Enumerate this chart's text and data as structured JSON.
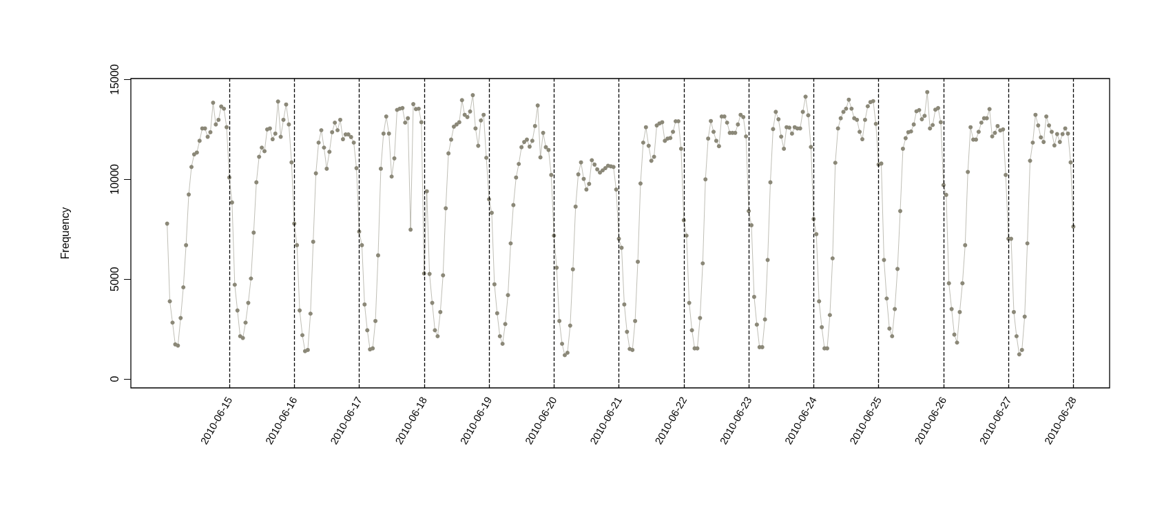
{
  "chart_data": {
    "type": "line",
    "ylabel": "Frequency",
    "xlim": [
      "2010-06-13T11:36",
      "2010-06-28T13:24"
    ],
    "xticks": [
      "2010-06-15",
      "2010-06-16",
      "2010-06-17",
      "2010-06-18",
      "2010-06-19",
      "2010-06-20",
      "2010-06-21",
      "2010-06-22",
      "2010-06-23",
      "2010-06-24",
      "2010-06-25",
      "2010-06-26",
      "2010-06-27",
      "2010-06-28"
    ],
    "ylim": [
      -450,
      15050
    ],
    "yticks": [
      0,
      5000,
      10000,
      15000
    ],
    "grid": false,
    "marker": "circle",
    "line_style": "solid",
    "ref_lines": [
      {
        "axis": "x",
        "value": "2010-06-15",
        "color": "#000000",
        "line_style": "dashed"
      },
      {
        "axis": "x",
        "value": "2010-06-16",
        "color": "#000000",
        "line_style": "dashed"
      },
      {
        "axis": "x",
        "value": "2010-06-17",
        "color": "#000000",
        "line_style": "dashed"
      },
      {
        "axis": "x",
        "value": "2010-06-18",
        "color": "#000000",
        "line_style": "dashed"
      },
      {
        "axis": "x",
        "value": "2010-06-19",
        "color": "#000000",
        "line_style": "dashed"
      },
      {
        "axis": "x",
        "value": "2010-06-20",
        "color": "#000000",
        "line_style": "dashed"
      },
      {
        "axis": "x",
        "value": "2010-06-21",
        "color": "#000000",
        "line_style": "dashed"
      },
      {
        "axis": "x",
        "value": "2010-06-22",
        "color": "#000000",
        "line_style": "dashed"
      },
      {
        "axis": "x",
        "value": "2010-06-23",
        "color": "#000000",
        "line_style": "dashed"
      },
      {
        "axis": "x",
        "value": "2010-06-24",
        "color": "#000000",
        "line_style": "dashed"
      },
      {
        "axis": "x",
        "value": "2010-06-25",
        "color": "#000000",
        "line_style": "dashed"
      },
      {
        "axis": "x",
        "value": "2010-06-26",
        "color": "#000000",
        "line_style": "dashed"
      },
      {
        "axis": "x",
        "value": "2010-06-27",
        "color": "#000000",
        "line_style": "dashed"
      },
      {
        "axis": "x",
        "value": "2010-06-28",
        "color": "#000000",
        "line_style": "dashed"
      }
    ],
    "x": [
      "2010-06-14T01:00",
      "2010-06-14T02:00",
      "2010-06-14T03:00",
      "2010-06-14T04:00",
      "2010-06-14T05:00",
      "2010-06-14T06:00",
      "2010-06-14T07:00",
      "2010-06-14T08:00",
      "2010-06-14T09:00",
      "2010-06-14T10:00",
      "2010-06-14T11:00",
      "2010-06-14T12:00",
      "2010-06-14T13:00",
      "2010-06-14T14:00",
      "2010-06-14T15:00",
      "2010-06-14T16:00",
      "2010-06-14T17:00",
      "2010-06-14T18:00",
      "2010-06-14T19:00",
      "2010-06-14T20:00",
      "2010-06-14T21:00",
      "2010-06-14T22:00",
      "2010-06-14T23:00",
      "2010-06-15T00:00",
      "2010-06-15T01:00",
      "2010-06-15T02:00",
      "2010-06-15T03:00",
      "2010-06-15T04:00",
      "2010-06-15T05:00",
      "2010-06-15T06:00",
      "2010-06-15T07:00",
      "2010-06-15T08:00",
      "2010-06-15T09:00",
      "2010-06-15T10:00",
      "2010-06-15T11:00",
      "2010-06-15T12:00",
      "2010-06-15T13:00",
      "2010-06-15T14:00",
      "2010-06-15T15:00",
      "2010-06-15T16:00",
      "2010-06-15T17:00",
      "2010-06-15T18:00",
      "2010-06-15T19:00",
      "2010-06-15T20:00",
      "2010-06-15T21:00",
      "2010-06-15T22:00",
      "2010-06-15T23:00",
      "2010-06-16T00:00",
      "2010-06-16T01:00",
      "2010-06-16T02:00",
      "2010-06-16T03:00",
      "2010-06-16T04:00",
      "2010-06-16T05:00",
      "2010-06-16T06:00",
      "2010-06-16T07:00",
      "2010-06-16T08:00",
      "2010-06-16T09:00",
      "2010-06-16T10:00",
      "2010-06-16T11:00",
      "2010-06-16T12:00",
      "2010-06-16T13:00",
      "2010-06-16T14:00",
      "2010-06-16T15:00",
      "2010-06-16T16:00",
      "2010-06-16T17:00",
      "2010-06-16T18:00",
      "2010-06-16T19:00",
      "2010-06-16T20:00",
      "2010-06-16T21:00",
      "2010-06-16T22:00",
      "2010-06-16T23:00",
      "2010-06-17T00:00",
      "2010-06-17T01:00",
      "2010-06-17T02:00",
      "2010-06-17T03:00",
      "2010-06-17T04:00",
      "2010-06-17T05:00",
      "2010-06-17T06:00",
      "2010-06-17T07:00",
      "2010-06-17T08:00",
      "2010-06-17T09:00",
      "2010-06-17T10:00",
      "2010-06-17T11:00",
      "2010-06-17T12:00",
      "2010-06-17T13:00",
      "2010-06-17T14:00",
      "2010-06-17T15:00",
      "2010-06-17T16:00",
      "2010-06-17T17:00",
      "2010-06-17T18:00",
      "2010-06-17T19:00",
      "2010-06-17T20:00",
      "2010-06-17T21:00",
      "2010-06-17T22:00",
      "2010-06-17T23:00",
      "2010-06-18T00:00",
      "2010-06-18T01:00",
      "2010-06-18T02:00",
      "2010-06-18T03:00",
      "2010-06-18T04:00",
      "2010-06-18T05:00",
      "2010-06-18T06:00",
      "2010-06-18T07:00",
      "2010-06-18T08:00",
      "2010-06-18T09:00",
      "2010-06-18T10:00",
      "2010-06-18T11:00",
      "2010-06-18T12:00",
      "2010-06-18T13:00",
      "2010-06-18T14:00",
      "2010-06-18T15:00",
      "2010-06-18T16:00",
      "2010-06-18T17:00",
      "2010-06-18T18:00",
      "2010-06-18T19:00",
      "2010-06-18T20:00",
      "2010-06-18T21:00",
      "2010-06-18T22:00",
      "2010-06-18T23:00",
      "2010-06-19T00:00",
      "2010-06-19T01:00",
      "2010-06-19T02:00",
      "2010-06-19T03:00",
      "2010-06-19T04:00",
      "2010-06-19T05:00",
      "2010-06-19T06:00",
      "2010-06-19T07:00",
      "2010-06-19T08:00",
      "2010-06-19T09:00",
      "2010-06-19T10:00",
      "2010-06-19T11:00",
      "2010-06-19T12:00",
      "2010-06-19T13:00",
      "2010-06-19T14:00",
      "2010-06-19T15:00",
      "2010-06-19T16:00",
      "2010-06-19T17:00",
      "2010-06-19T18:00",
      "2010-06-19T19:00",
      "2010-06-19T20:00",
      "2010-06-19T21:00",
      "2010-06-19T22:00",
      "2010-06-19T23:00",
      "2010-06-20T00:00",
      "2010-06-20T01:00",
      "2010-06-20T02:00",
      "2010-06-20T03:00",
      "2010-06-20T04:00",
      "2010-06-20T05:00",
      "2010-06-20T06:00",
      "2010-06-20T07:00",
      "2010-06-20T08:00",
      "2010-06-20T09:00",
      "2010-06-20T10:00",
      "2010-06-20T11:00",
      "2010-06-20T12:00",
      "2010-06-20T13:00",
      "2010-06-20T14:00",
      "2010-06-20T15:00",
      "2010-06-20T16:00",
      "2010-06-20T17:00",
      "2010-06-20T18:00",
      "2010-06-20T19:00",
      "2010-06-20T20:00",
      "2010-06-20T21:00",
      "2010-06-20T22:00",
      "2010-06-20T23:00",
      "2010-06-21T00:00",
      "2010-06-21T01:00",
      "2010-06-21T02:00",
      "2010-06-21T03:00",
      "2010-06-21T04:00",
      "2010-06-21T05:00",
      "2010-06-21T06:00",
      "2010-06-21T07:00",
      "2010-06-21T08:00",
      "2010-06-21T09:00",
      "2010-06-21T10:00",
      "2010-06-21T11:00",
      "2010-06-21T12:00",
      "2010-06-21T13:00",
      "2010-06-21T14:00",
      "2010-06-21T15:00",
      "2010-06-21T16:00",
      "2010-06-21T17:00",
      "2010-06-21T18:00",
      "2010-06-21T19:00",
      "2010-06-21T20:00",
      "2010-06-21T21:00",
      "2010-06-21T22:00",
      "2010-06-21T23:00",
      "2010-06-22T00:00",
      "2010-06-22T01:00",
      "2010-06-22T02:00",
      "2010-06-22T03:00",
      "2010-06-22T04:00",
      "2010-06-22T05:00",
      "2010-06-22T06:00",
      "2010-06-22T07:00",
      "2010-06-22T08:00",
      "2010-06-22T09:00",
      "2010-06-22T10:00",
      "2010-06-22T11:00",
      "2010-06-22T12:00",
      "2010-06-22T13:00",
      "2010-06-22T14:00",
      "2010-06-22T15:00",
      "2010-06-22T16:00",
      "2010-06-22T17:00",
      "2010-06-22T18:00",
      "2010-06-22T19:00",
      "2010-06-22T20:00",
      "2010-06-22T21:00",
      "2010-06-22T22:00",
      "2010-06-22T23:00",
      "2010-06-23T00:00",
      "2010-06-23T01:00",
      "2010-06-23T02:00",
      "2010-06-23T03:00",
      "2010-06-23T04:00",
      "2010-06-23T05:00",
      "2010-06-23T06:00",
      "2010-06-23T07:00",
      "2010-06-23T08:00",
      "2010-06-23T09:00",
      "2010-06-23T10:00",
      "2010-06-23T11:00",
      "2010-06-23T12:00",
      "2010-06-23T13:00",
      "2010-06-23T14:00",
      "2010-06-23T15:00",
      "2010-06-23T16:00",
      "2010-06-23T17:00",
      "2010-06-23T18:00",
      "2010-06-23T19:00",
      "2010-06-23T20:00",
      "2010-06-23T21:00",
      "2010-06-23T22:00",
      "2010-06-23T23:00",
      "2010-06-24T00:00",
      "2010-06-24T01:00",
      "2010-06-24T02:00",
      "2010-06-24T03:00",
      "2010-06-24T04:00",
      "2010-06-24T05:00",
      "2010-06-24T06:00",
      "2010-06-24T07:00",
      "2010-06-24T08:00",
      "2010-06-24T09:00",
      "2010-06-24T10:00",
      "2010-06-24T11:00",
      "2010-06-24T12:00",
      "2010-06-24T13:00",
      "2010-06-24T14:00",
      "2010-06-24T15:00",
      "2010-06-24T16:00",
      "2010-06-24T17:00",
      "2010-06-24T18:00",
      "2010-06-24T19:00",
      "2010-06-24T20:00",
      "2010-06-24T21:00",
      "2010-06-24T22:00",
      "2010-06-24T23:00",
      "2010-06-25T00:00",
      "2010-06-25T01:00",
      "2010-06-25T02:00",
      "2010-06-25T03:00",
      "2010-06-25T04:00",
      "2010-06-25T05:00",
      "2010-06-25T06:00",
      "2010-06-25T07:00",
      "2010-06-25T08:00",
      "2010-06-25T09:00",
      "2010-06-25T10:00",
      "2010-06-25T11:00",
      "2010-06-25T12:00",
      "2010-06-25T13:00",
      "2010-06-25T14:00",
      "2010-06-25T15:00",
      "2010-06-25T16:00",
      "2010-06-25T17:00",
      "2010-06-25T18:00",
      "2010-06-25T19:00",
      "2010-06-25T20:00",
      "2010-06-25T21:00",
      "2010-06-25T22:00",
      "2010-06-25T23:00",
      "2010-06-26T00:00",
      "2010-06-26T01:00",
      "2010-06-26T02:00",
      "2010-06-26T03:00",
      "2010-06-26T04:00",
      "2010-06-26T05:00",
      "2010-06-26T06:00",
      "2010-06-26T07:00",
      "2010-06-26T08:00",
      "2010-06-26T09:00",
      "2010-06-26T10:00",
      "2010-06-26T11:00",
      "2010-06-26T12:00",
      "2010-06-26T13:00",
      "2010-06-26T14:00",
      "2010-06-26T15:00",
      "2010-06-26T16:00",
      "2010-06-26T17:00",
      "2010-06-26T18:00",
      "2010-06-26T19:00",
      "2010-06-26T20:00",
      "2010-06-26T21:00",
      "2010-06-26T22:00",
      "2010-06-26T23:00",
      "2010-06-27T00:00",
      "2010-06-27T01:00",
      "2010-06-27T02:00",
      "2010-06-27T03:00",
      "2010-06-27T04:00",
      "2010-06-27T05:00",
      "2010-06-27T06:00",
      "2010-06-27T07:00",
      "2010-06-27T08:00",
      "2010-06-27T09:00",
      "2010-06-27T10:00",
      "2010-06-27T11:00",
      "2010-06-27T12:00",
      "2010-06-27T13:00",
      "2010-06-27T14:00",
      "2010-06-27T15:00",
      "2010-06-27T16:00",
      "2010-06-27T17:00",
      "2010-06-27T18:00",
      "2010-06-27T19:00",
      "2010-06-27T20:00",
      "2010-06-27T21:00",
      "2010-06-27T22:00",
      "2010-06-27T23:00",
      "2010-06-28T00:00"
    ],
    "series": [
      {
        "color": "#8b8878",
        "values": [
          7780,
          3890,
          2820,
          1730,
          1670,
          3050,
          4590,
          6700,
          9240,
          10620,
          11250,
          11340,
          11930,
          12550,
          12550,
          12130,
          12360,
          13840,
          12750,
          12980,
          13650,
          13540,
          12610,
          10090,
          8840,
          4720,
          3430,
          2140,
          2050,
          2820,
          3810,
          5030,
          7330,
          9850,
          11130,
          11590,
          11410,
          12500,
          12550,
          12010,
          12290,
          13900,
          12130,
          12980,
          13750,
          12750,
          10850,
          7780,
          6700,
          3430,
          2190,
          1390,
          1450,
          3270,
          6870,
          10300,
          11840,
          12460,
          11590,
          10530,
          11380,
          12360,
          12840,
          12460,
          12980,
          12010,
          12250,
          12250,
          12120,
          11840,
          10560,
          7380,
          6700,
          3730,
          2440,
          1480,
          1530,
          2900,
          6190,
          10530,
          12290,
          13150,
          12290,
          10140,
          11050,
          13480,
          13540,
          13570,
          12840,
          13060,
          7480,
          13770,
          13520,
          13540,
          12860,
          5280,
          9400,
          5260,
          3810,
          2440,
          2140,
          3350,
          5190,
          8550,
          11300,
          11990,
          12640,
          12750,
          12860,
          13970,
          13230,
          13120,
          13400,
          14220,
          12550,
          11680,
          12950,
          13230,
          11080,
          9000,
          8320,
          4740,
          3290,
          2140,
          1760,
          2750,
          4200,
          6790,
          8710,
          10090,
          10770,
          11610,
          11870,
          11990,
          11640,
          11930,
          12670,
          13700,
          11100,
          12330,
          11610,
          11470,
          10220,
          7180,
          5570,
          2900,
          1760,
          1190,
          1310,
          2670,
          5490,
          8630,
          10250,
          10850,
          10020,
          9490,
          9770,
          10960,
          10740,
          10500,
          10340,
          10450,
          10560,
          10680,
          10650,
          10620,
          9490,
          7020,
          6570,
          3730,
          2360,
          1500,
          1450,
          2900,
          5870,
          9790,
          11840,
          12610,
          11680,
          10930,
          11130,
          12700,
          12800,
          12860,
          11930,
          12040,
          12070,
          12380,
          12910,
          12910,
          11530,
          7950,
          7180,
          3810,
          2440,
          1530,
          1530,
          3050,
          5790,
          10000,
          12040,
          12920,
          12380,
          11930,
          11660,
          13150,
          13150,
          12840,
          12330,
          12330,
          12330,
          12750,
          13230,
          13120,
          12150,
          8410,
          7700,
          4110,
          2720,
          1590,
          1590,
          2980,
          5960,
          9850,
          12520,
          13380,
          13010,
          12140,
          11530,
          12610,
          12590,
          12290,
          12610,
          12550,
          12550,
          13380,
          14140,
          13210,
          11620,
          8010,
          7250,
          3890,
          2590,
          1530,
          1530,
          3200,
          6040,
          10830,
          12550,
          13060,
          13380,
          13540,
          13990,
          13540,
          13060,
          12980,
          12380,
          12010,
          12980,
          13660,
          13870,
          13920,
          12780,
          10740,
          10790,
          5960,
          4030,
          2520,
          2140,
          3500,
          5510,
          8410,
          11530,
          12060,
          12360,
          12400,
          12750,
          13410,
          13470,
          13010,
          13180,
          14370,
          12550,
          12720,
          13490,
          13570,
          12860,
          9710,
          9220,
          4790,
          3500,
          2220,
          1820,
          3350,
          4790,
          6700,
          10370,
          12610,
          11990,
          11990,
          12380,
          12840,
          13060,
          13060,
          13520,
          12150,
          12330,
          12670,
          12450,
          12500,
          10220,
          7020,
          7020,
          3350,
          2140,
          1230,
          1450,
          3120,
          6790,
          10930,
          11840,
          13230,
          12700,
          12100,
          11870,
          13150,
          12700,
          12380,
          11700,
          12270,
          11870,
          12270,
          12550,
          12290,
          10850,
          7630
        ]
      }
    ]
  }
}
